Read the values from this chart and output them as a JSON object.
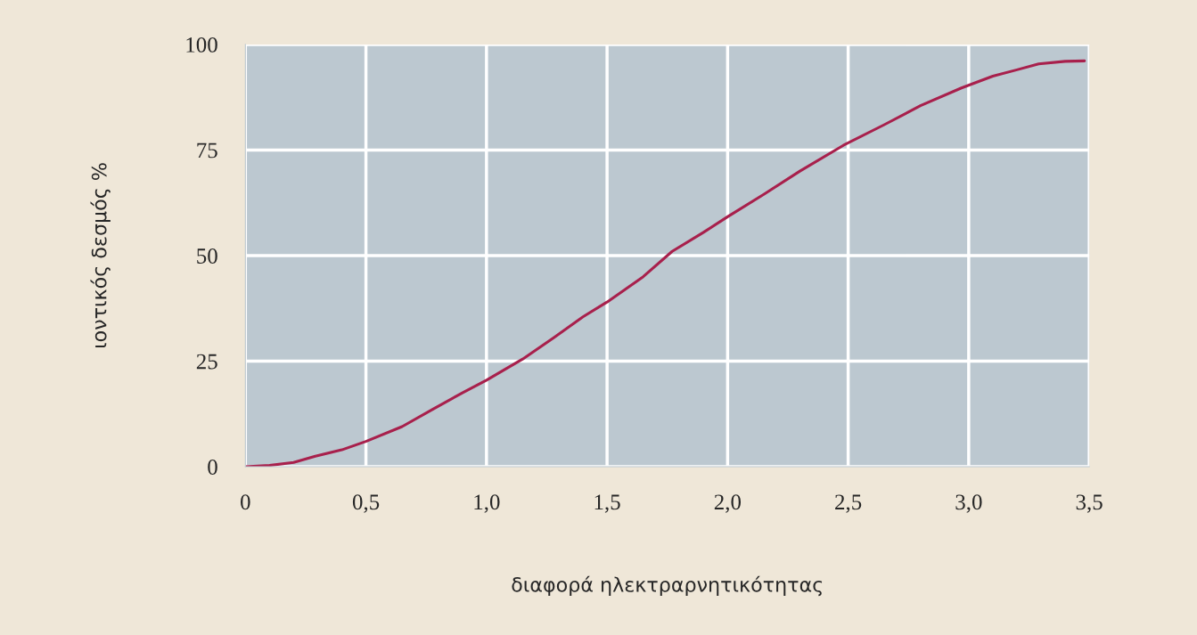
{
  "chart_data": {
    "type": "line",
    "xlabel": "διαφορά ηλεκτραρνητικότητας",
    "ylabel": "ιοντικός δεσμός %",
    "series": [
      {
        "color": "#a8204c",
        "x": [
          0,
          0.1,
          0.2,
          0.29,
          0.4,
          0.5,
          0.65,
          0.78,
          0.9,
          1.0,
          1.15,
          1.28,
          1.4,
          1.5,
          1.65,
          1.77,
          1.9,
          2.0,
          2.15,
          2.3,
          2.48,
          2.65,
          2.8,
          2.97,
          3.1,
          3.2,
          3.29,
          3.4,
          3.48
        ],
        "values": [
          0,
          0.3,
          1,
          2.5,
          4,
          6,
          9.5,
          13.7,
          17.5,
          20.5,
          25.5,
          30.6,
          35.5,
          39,
          45,
          51,
          55.5,
          59.2,
          64.5,
          70,
          76.1,
          81,
          85.5,
          89.7,
          92.5,
          94,
          95.4,
          96,
          96.1
        ]
      }
    ],
    "xlim": [
      0,
      3.5
    ],
    "ylim": [
      0,
      100
    ],
    "xticks": [
      {
        "value": 0,
        "label": "0"
      },
      {
        "value": 0.5,
        "label": "0,5"
      },
      {
        "value": 1.0,
        "label": "1,0"
      },
      {
        "value": 1.5,
        "label": "1,5"
      },
      {
        "value": 2.0,
        "label": "2,0"
      },
      {
        "value": 2.5,
        "label": "2,5"
      },
      {
        "value": 3.0,
        "label": "3,0"
      },
      {
        "value": 3.5,
        "label": "3,5"
      }
    ],
    "yticks": [
      0,
      25,
      50,
      75,
      100
    ],
    "grid": true,
    "marker": "none",
    "line_style": "solid"
  }
}
